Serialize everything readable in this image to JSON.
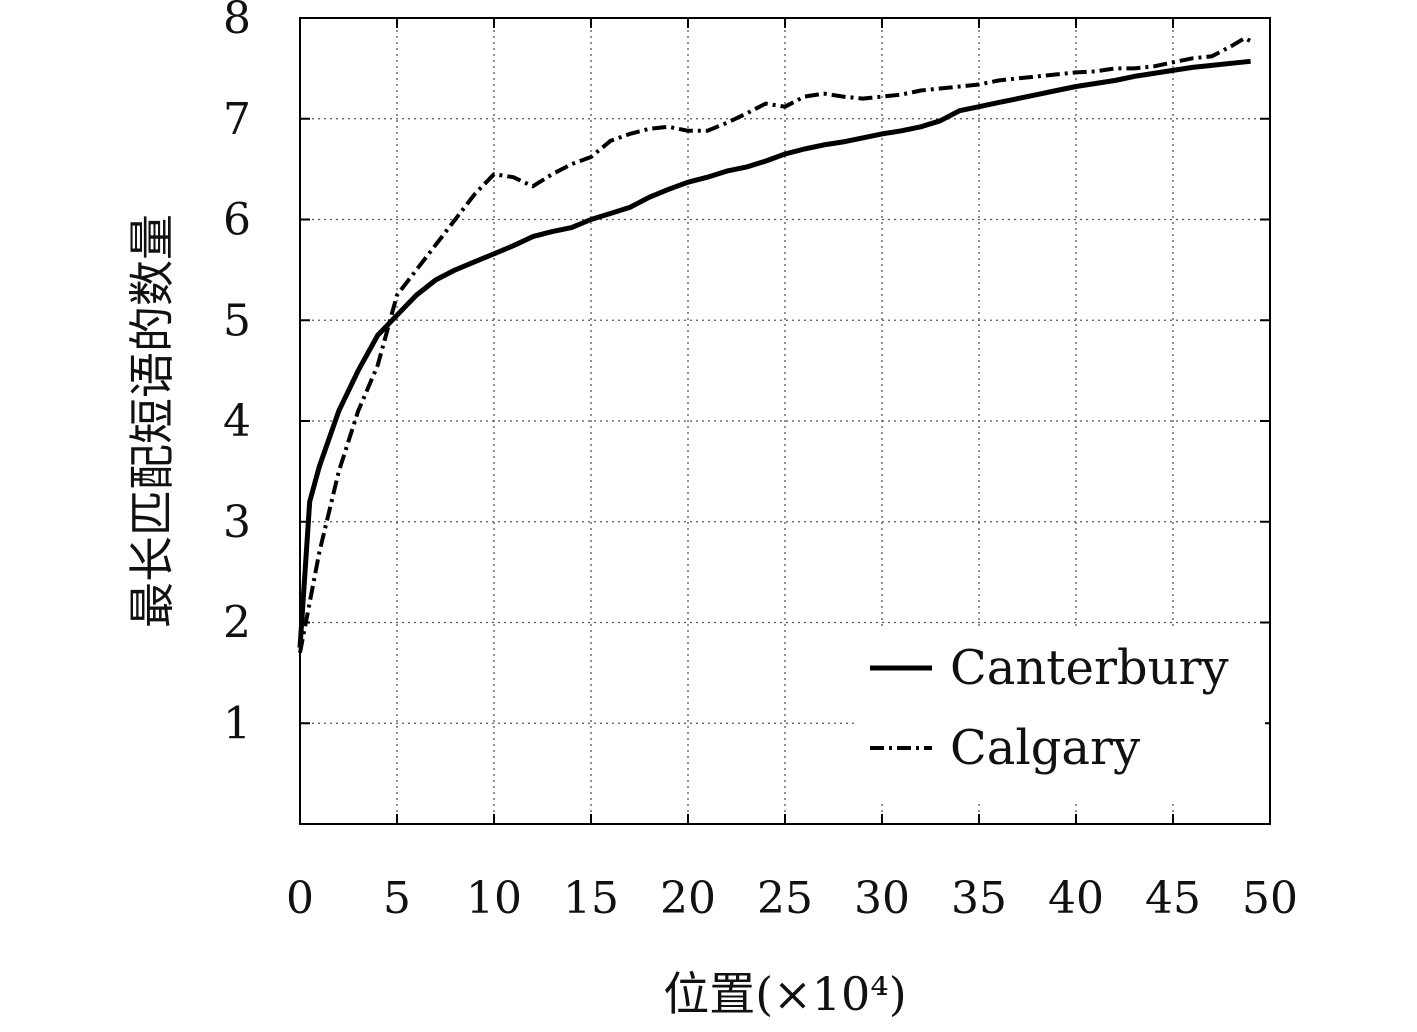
{
  "chart_data": {
    "type": "line",
    "title": "",
    "xlabel": "位置(×10⁴)",
    "ylabel": "最长匹配短语的数量",
    "xlim": [
      0,
      50
    ],
    "ylim": [
      0,
      8
    ],
    "xticks": [
      0,
      5,
      10,
      15,
      20,
      25,
      30,
      35,
      40,
      45,
      50
    ],
    "yticks": [
      1,
      2,
      3,
      4,
      5,
      6,
      7,
      8
    ],
    "x_tick_labels": [
      "0",
      "5",
      "10",
      "15",
      "20",
      "25",
      "30",
      "35",
      "40",
      "45",
      "50"
    ],
    "y_tick_labels": [
      "1",
      "2",
      "3",
      "4",
      "5",
      "6",
      "7",
      "8"
    ],
    "grid": true,
    "legend": {
      "position": "bottom-right",
      "entries": [
        "Canterbury",
        "Calgary"
      ]
    },
    "series": [
      {
        "name": "Canterbury",
        "style": "solid",
        "color": "#000000",
        "x": [
          0,
          0.5,
          1,
          2,
          3,
          4,
          5,
          6,
          7,
          8,
          9,
          10,
          11,
          12,
          13,
          14,
          15,
          16,
          17,
          18,
          19,
          20,
          21,
          22,
          23,
          24,
          25,
          26,
          27,
          28,
          29,
          30,
          31,
          32,
          33,
          34,
          35,
          36,
          37,
          38,
          39,
          40,
          41,
          42,
          43,
          44,
          45,
          46,
          47,
          48,
          49
        ],
        "y": [
          1.75,
          3.2,
          3.55,
          4.1,
          4.5,
          4.85,
          5.05,
          5.25,
          5.4,
          5.5,
          5.58,
          5.66,
          5.74,
          5.83,
          5.88,
          5.92,
          6.0,
          6.06,
          6.12,
          6.22,
          6.3,
          6.37,
          6.42,
          6.48,
          6.52,
          6.58,
          6.65,
          6.7,
          6.74,
          6.77,
          6.81,
          6.85,
          6.88,
          6.92,
          6.98,
          7.08,
          7.12,
          7.16,
          7.2,
          7.24,
          7.28,
          7.32,
          7.35,
          7.38,
          7.42,
          7.45,
          7.48,
          7.51,
          7.53,
          7.55,
          7.57
        ]
      },
      {
        "name": "Calgary",
        "style": "dashdot",
        "color": "#000000",
        "x": [
          0,
          0.5,
          1,
          2,
          3,
          4,
          5,
          6,
          7,
          8,
          9,
          10,
          11,
          12,
          13,
          14,
          15,
          16,
          17,
          18,
          19,
          20,
          21,
          22,
          23,
          24,
          25,
          26,
          27,
          28,
          29,
          30,
          31,
          32,
          33,
          34,
          35,
          36,
          37,
          38,
          39,
          40,
          41,
          42,
          43,
          44,
          45,
          46,
          47,
          48,
          48.7,
          49.2
        ],
        "y": [
          1.7,
          2.2,
          2.7,
          3.5,
          4.1,
          4.55,
          5.25,
          5.5,
          5.75,
          6.0,
          6.25,
          6.45,
          6.42,
          6.33,
          6.45,
          6.55,
          6.62,
          6.78,
          6.85,
          6.9,
          6.92,
          6.88,
          6.88,
          6.96,
          7.05,
          7.15,
          7.12,
          7.22,
          7.25,
          7.22,
          7.2,
          7.22,
          7.24,
          7.28,
          7.3,
          7.32,
          7.34,
          7.38,
          7.4,
          7.42,
          7.44,
          7.46,
          7.47,
          7.5,
          7.5,
          7.52,
          7.56,
          7.6,
          7.62,
          7.72,
          7.8,
          7.75
        ]
      }
    ]
  }
}
